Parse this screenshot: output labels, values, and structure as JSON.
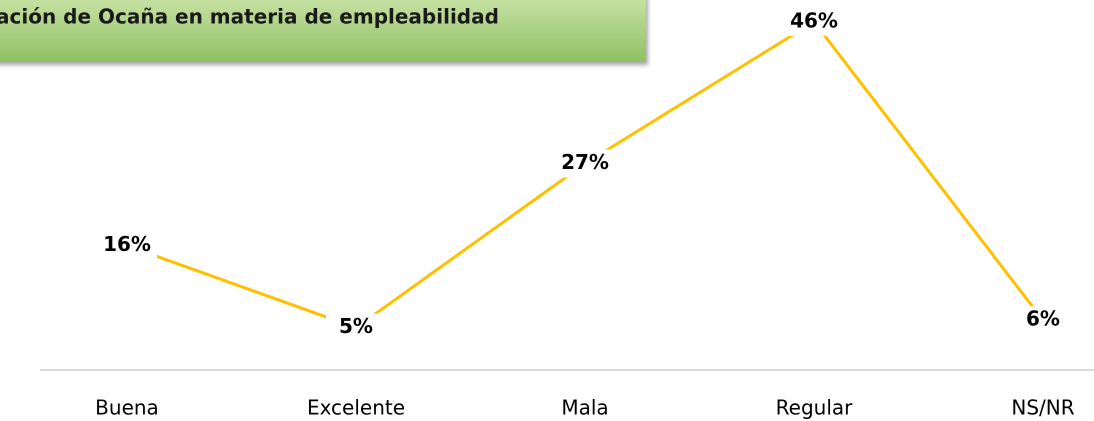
{
  "chart_data": {
    "type": "line",
    "title": "ación de Ocaña en materia de empleabilidad",
    "categories": [
      "Buena",
      "Excelente",
      "Mala",
      "Regular",
      "NS/NR"
    ],
    "values": [
      16,
      5,
      27,
      46,
      6
    ],
    "value_labels": [
      "16%",
      "5%",
      "27%",
      "46%",
      "6%"
    ],
    "color": "#ffc000"
  }
}
